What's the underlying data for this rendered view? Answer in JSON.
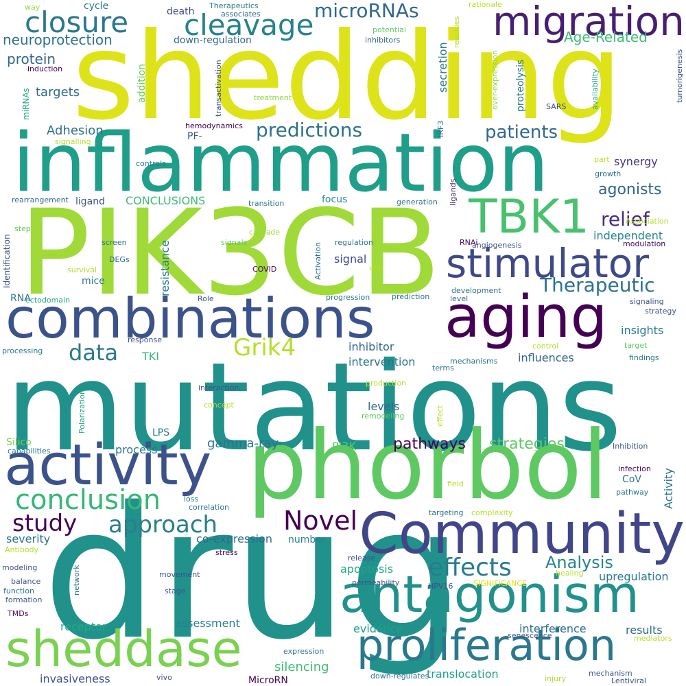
{
  "words": [
    {
      "text": "mutations",
      "color": "#21918c"
    },
    {
      "text": "drug",
      "color": "#21918c"
    },
    {
      "text": "shedding",
      "color": "#dde318"
    },
    {
      "text": "PIK3CB",
      "color": "#a0da39"
    },
    {
      "text": "inflammation",
      "color": "#1f9e89"
    },
    {
      "text": "phorbol",
      "color": "#5ec962"
    },
    {
      "text": "combinations",
      "color": "#3b528b"
    },
    {
      "text": "aging",
      "color": "#440154"
    },
    {
      "text": "Community",
      "color": "#404688"
    },
    {
      "text": "activity",
      "color": "#3b528b"
    },
    {
      "text": "antagonism",
      "color": "#21918c"
    },
    {
      "text": "migration",
      "color": "#481f70"
    },
    {
      "text": "stimulator",
      "color": "#3e4989"
    },
    {
      "text": "TBK1",
      "color": "#48c16e"
    },
    {
      "text": "sheddase",
      "color": "#7ad151"
    },
    {
      "text": "proliferation",
      "color": "#2a788e"
    },
    {
      "text": "closure",
      "color": "#2a788e"
    },
    {
      "text": "cleavage",
      "color": "#26828e"
    },
    {
      "text": "conclusion",
      "color": "#35b779"
    },
    {
      "text": "microRNAs",
      "color": "#31688e"
    },
    {
      "text": "predictions",
      "color": "#2c728e"
    },
    {
      "text": "Therapeutic",
      "color": "#2c728e"
    },
    {
      "text": "effects",
      "color": "#287c8e"
    },
    {
      "text": "approach",
      "color": "#277f8e"
    },
    {
      "text": "Novel",
      "color": "#440154"
    },
    {
      "text": "study",
      "color": "#440154"
    },
    {
      "text": "data",
      "color": "#2a788e"
    },
    {
      "text": "Grik4",
      "color": "#b5de2b"
    },
    {
      "text": "patients",
      "color": "#30698e"
    },
    {
      "text": "relief",
      "color": "#472d7b"
    },
    {
      "text": "Analysis",
      "color": "#25848e"
    },
    {
      "text": "agonists",
      "color": "#33638d"
    },
    {
      "text": "strategies",
      "color": "#5ec962"
    },
    {
      "text": "pathways",
      "color": "#440154"
    },
    {
      "text": "neuroprotection",
      "color": "#2c728e"
    },
    {
      "text": "Age-Related",
      "color": "#3dbc74"
    },
    {
      "text": "protein",
      "color": "#31688e"
    },
    {
      "text": "targets",
      "color": "#31688e"
    },
    {
      "text": "Adhesion",
      "color": "#2c728e"
    },
    {
      "text": "CONCLUSIONS",
      "color": "#3dbc74"
    },
    {
      "text": "synergy",
      "color": "#46337f"
    },
    {
      "text": "independent",
      "color": "#25848e"
    },
    {
      "text": "insights",
      "color": "#2a788e"
    },
    {
      "text": "influences",
      "color": "#33638d"
    },
    {
      "text": "inhibitor",
      "color": "#33638d"
    },
    {
      "text": "intervention",
      "color": "#2c728e"
    },
    {
      "text": "TKI",
      "color": "#35b779"
    },
    {
      "text": "gamma-ray-",
      "color": "#2c728e"
    },
    {
      "text": "levels",
      "color": "#31688e"
    },
    {
      "text": "signal",
      "color": "#3e4989"
    },
    {
      "text": "process",
      "color": "#2a788e"
    },
    {
      "text": "PI3K",
      "color": "#5ec962"
    },
    {
      "text": "severity",
      "color": "#2c728e"
    },
    {
      "text": "co-expression",
      "color": "#31688e"
    },
    {
      "text": "apoptosis",
      "color": "#20a486"
    },
    {
      "text": "upregulation",
      "color": "#2a788e"
    },
    {
      "text": "results",
      "color": "#31688e"
    },
    {
      "text": "assessment",
      "color": "#277f8e"
    },
    {
      "text": "evidence",
      "color": "#1f9e89"
    },
    {
      "text": "interference",
      "color": "#2c728e"
    },
    {
      "text": "receptor",
      "color": "#22a884"
    },
    {
      "text": "silencing",
      "color": "#3dbc74"
    },
    {
      "text": "translocation",
      "color": "#1fa088"
    },
    {
      "text": "invasiveness",
      "color": "#3b528b"
    },
    {
      "text": "MicroRN",
      "color": "#440154"
    },
    {
      "text": "ligand",
      "color": "#3b528b"
    },
    {
      "text": "PF-",
      "color": "#3b528b"
    },
    {
      "text": "focus",
      "color": "#21918c"
    },
    {
      "text": "mice",
      "color": "#2a788e"
    },
    {
      "text": "RNA",
      "color": "#2c728e"
    },
    {
      "text": "LPS",
      "color": "#2a788e"
    },
    {
      "text": "number",
      "color": "#277f8e"
    },
    {
      "text": "Silico",
      "color": "#7ad151"
    },
    {
      "text": "down-regulation",
      "color": "#31688e"
    },
    {
      "text": "death",
      "color": "#3e4989"
    },
    {
      "text": "cycle",
      "color": "#2a788e"
    },
    {
      "text": "addition",
      "color": "#6ccd5a"
    },
    {
      "text": "secretion",
      "color": "#2a788e"
    },
    {
      "text": "proteolysis",
      "color": "#2a788e"
    },
    {
      "text": "resistance",
      "color": "#2a788e"
    },
    {
      "text": "Identification",
      "color": "#3b528b"
    },
    {
      "text": "Activity",
      "color": "#2c728e"
    },
    {
      "text": "CoV",
      "color": "#2c728e"
    },
    {
      "text": "miRNAs",
      "color": "#22a884"
    },
    {
      "text": "way",
      "color": "#90d743"
    },
    {
      "text": "Therapeutics",
      "color": "#2a788e"
    },
    {
      "text": "associates",
      "color": "#31688e"
    },
    {
      "text": "rationale",
      "color": "#b5de2b"
    },
    {
      "text": "potential",
      "color": "#5ec962"
    },
    {
      "text": "inhibitors",
      "color": "#31688e"
    },
    {
      "text": "induction",
      "color": "#440154"
    },
    {
      "text": "residues",
      "color": "#b5de2b"
    },
    {
      "text": "over-expression",
      "color": "#90d743"
    },
    {
      "text": "availability",
      "color": "#22a884"
    },
    {
      "text": "tumorigenesis",
      "color": "#3b528b"
    },
    {
      "text": "treatment",
      "color": "#90d743"
    },
    {
      "text": "transactivation",
      "color": "#3b528b"
    },
    {
      "text": "SARS",
      "color": "#3e4989"
    },
    {
      "text": "hemodynamics",
      "color": "#440154"
    },
    {
      "text": "signalling",
      "color": "#b5de2b"
    },
    {
      "text": "IRF3",
      "color": "#2c728e"
    },
    {
      "text": "part",
      "color": "#bddf26"
    },
    {
      "text": "growth",
      "color": "#2c728e"
    },
    {
      "text": "controls",
      "color": "#2a788e"
    },
    {
      "text": "rearrangement",
      "color": "#31688e"
    },
    {
      "text": "transition",
      "color": "#2a788e"
    },
    {
      "text": "generation",
      "color": "#2c728e"
    },
    {
      "text": "ligands",
      "color": "#472d7b"
    },
    {
      "text": "Association",
      "color": "#b5de2b"
    },
    {
      "text": "step",
      "color": "#5ec962"
    },
    {
      "text": "cascade",
      "color": "#a0da39"
    },
    {
      "text": "screen",
      "color": "#2c728e"
    },
    {
      "text": "signals",
      "color": "#5ec962"
    },
    {
      "text": "regulation",
      "color": "#2c728e"
    },
    {
      "text": "RNAi",
      "color": "#440154"
    },
    {
      "text": "angiogenesis",
      "color": "#3b528b"
    },
    {
      "text": "modulation",
      "color": "#440154"
    },
    {
      "text": "DEGs",
      "color": "#31688e"
    },
    {
      "text": "survival",
      "color": "#b5de2b"
    },
    {
      "text": "COVID",
      "color": "#440154"
    },
    {
      "text": "Activation",
      "color": "#2c728e"
    },
    {
      "text": "use",
      "color": "#b5de2b"
    },
    {
      "text": "ectodomain",
      "color": "#22a884"
    },
    {
      "text": "Role",
      "color": "#3b528b"
    },
    {
      "text": "progression",
      "color": "#2c728e"
    },
    {
      "text": "prediction",
      "color": "#2a788e"
    },
    {
      "text": "development",
      "color": "#2c728e"
    },
    {
      "text": "level",
      "color": "#31688e"
    },
    {
      "text": "signaling",
      "color": "#3b528b"
    },
    {
      "text": "strategy",
      "color": "#3b528b"
    },
    {
      "text": "response",
      "color": "#3b528b"
    },
    {
      "text": "control",
      "color": "#b5de2b"
    },
    {
      "text": "target",
      "color": "#5ec962"
    },
    {
      "text": "processing",
      "color": "#2a788e"
    },
    {
      "text": "mechanisms",
      "color": "#2c728e"
    },
    {
      "text": "terms",
      "color": "#2c728e"
    },
    {
      "text": "findings",
      "color": "#2c728e"
    },
    {
      "text": "production",
      "color": "#b5de2b"
    },
    {
      "text": "interaction",
      "color": "#3b528b"
    },
    {
      "text": "concept",
      "color": "#b5de2b"
    },
    {
      "text": "Polarization",
      "color": "#22a884"
    },
    {
      "text": "effect",
      "color": "#b5de2b"
    },
    {
      "text": "remodeling",
      "color": "#5ec962"
    },
    {
      "text": "capabilities",
      "color": "#2c728e"
    },
    {
      "text": "Inhibition",
      "color": "#3b528b"
    },
    {
      "text": "infection",
      "color": "#440154"
    },
    {
      "text": "field",
      "color": "#b5de2b"
    },
    {
      "text": "pathway",
      "color": "#2c728e"
    },
    {
      "text": "loss",
      "color": "#2a788e"
    },
    {
      "text": "correlation",
      "color": "#2c728e"
    },
    {
      "text": "targeting",
      "color": "#2c728e"
    },
    {
      "text": "complexity",
      "color": "#b5de2b"
    },
    {
      "text": "Antibody",
      "color": "#b5de2b"
    },
    {
      "text": "stress",
      "color": "#440154"
    },
    {
      "text": "release",
      "color": "#3b528b"
    },
    {
      "text": "modeling",
      "color": "#3b528b"
    },
    {
      "text": "network",
      "color": "#2c728e"
    },
    {
      "text": "movement",
      "color": "#3b528b"
    },
    {
      "text": "healing",
      "color": "#b5de2b"
    },
    {
      "text": "balance",
      "color": "#3b528b"
    },
    {
      "text": "permeability",
      "color": "#3b528b"
    },
    {
      "text": "HPV16",
      "color": "#3b528b"
    },
    {
      "text": "SIGNIFICANCE",
      "color": "#dde318"
    },
    {
      "text": "function",
      "color": "#2c728e"
    },
    {
      "text": "stage",
      "color": "#3b528b"
    },
    {
      "text": "formation",
      "color": "#3b528b"
    },
    {
      "text": "TMDs",
      "color": "#440154"
    },
    {
      "text": "senescence",
      "color": "#3b528b"
    },
    {
      "text": "mediators",
      "color": "#b5de2b"
    },
    {
      "text": "expression",
      "color": "#2c728e"
    },
    {
      "text": "vivo",
      "color": "#3b528b"
    },
    {
      "text": "down-regulates",
      "color": "#2c728e"
    },
    {
      "text": "injury",
      "color": "#b5de2b"
    },
    {
      "text": "mechanism",
      "color": "#3b528b"
    },
    {
      "text": "Lentiviral",
      "color": "#3b528b"
    }
  ]
}
